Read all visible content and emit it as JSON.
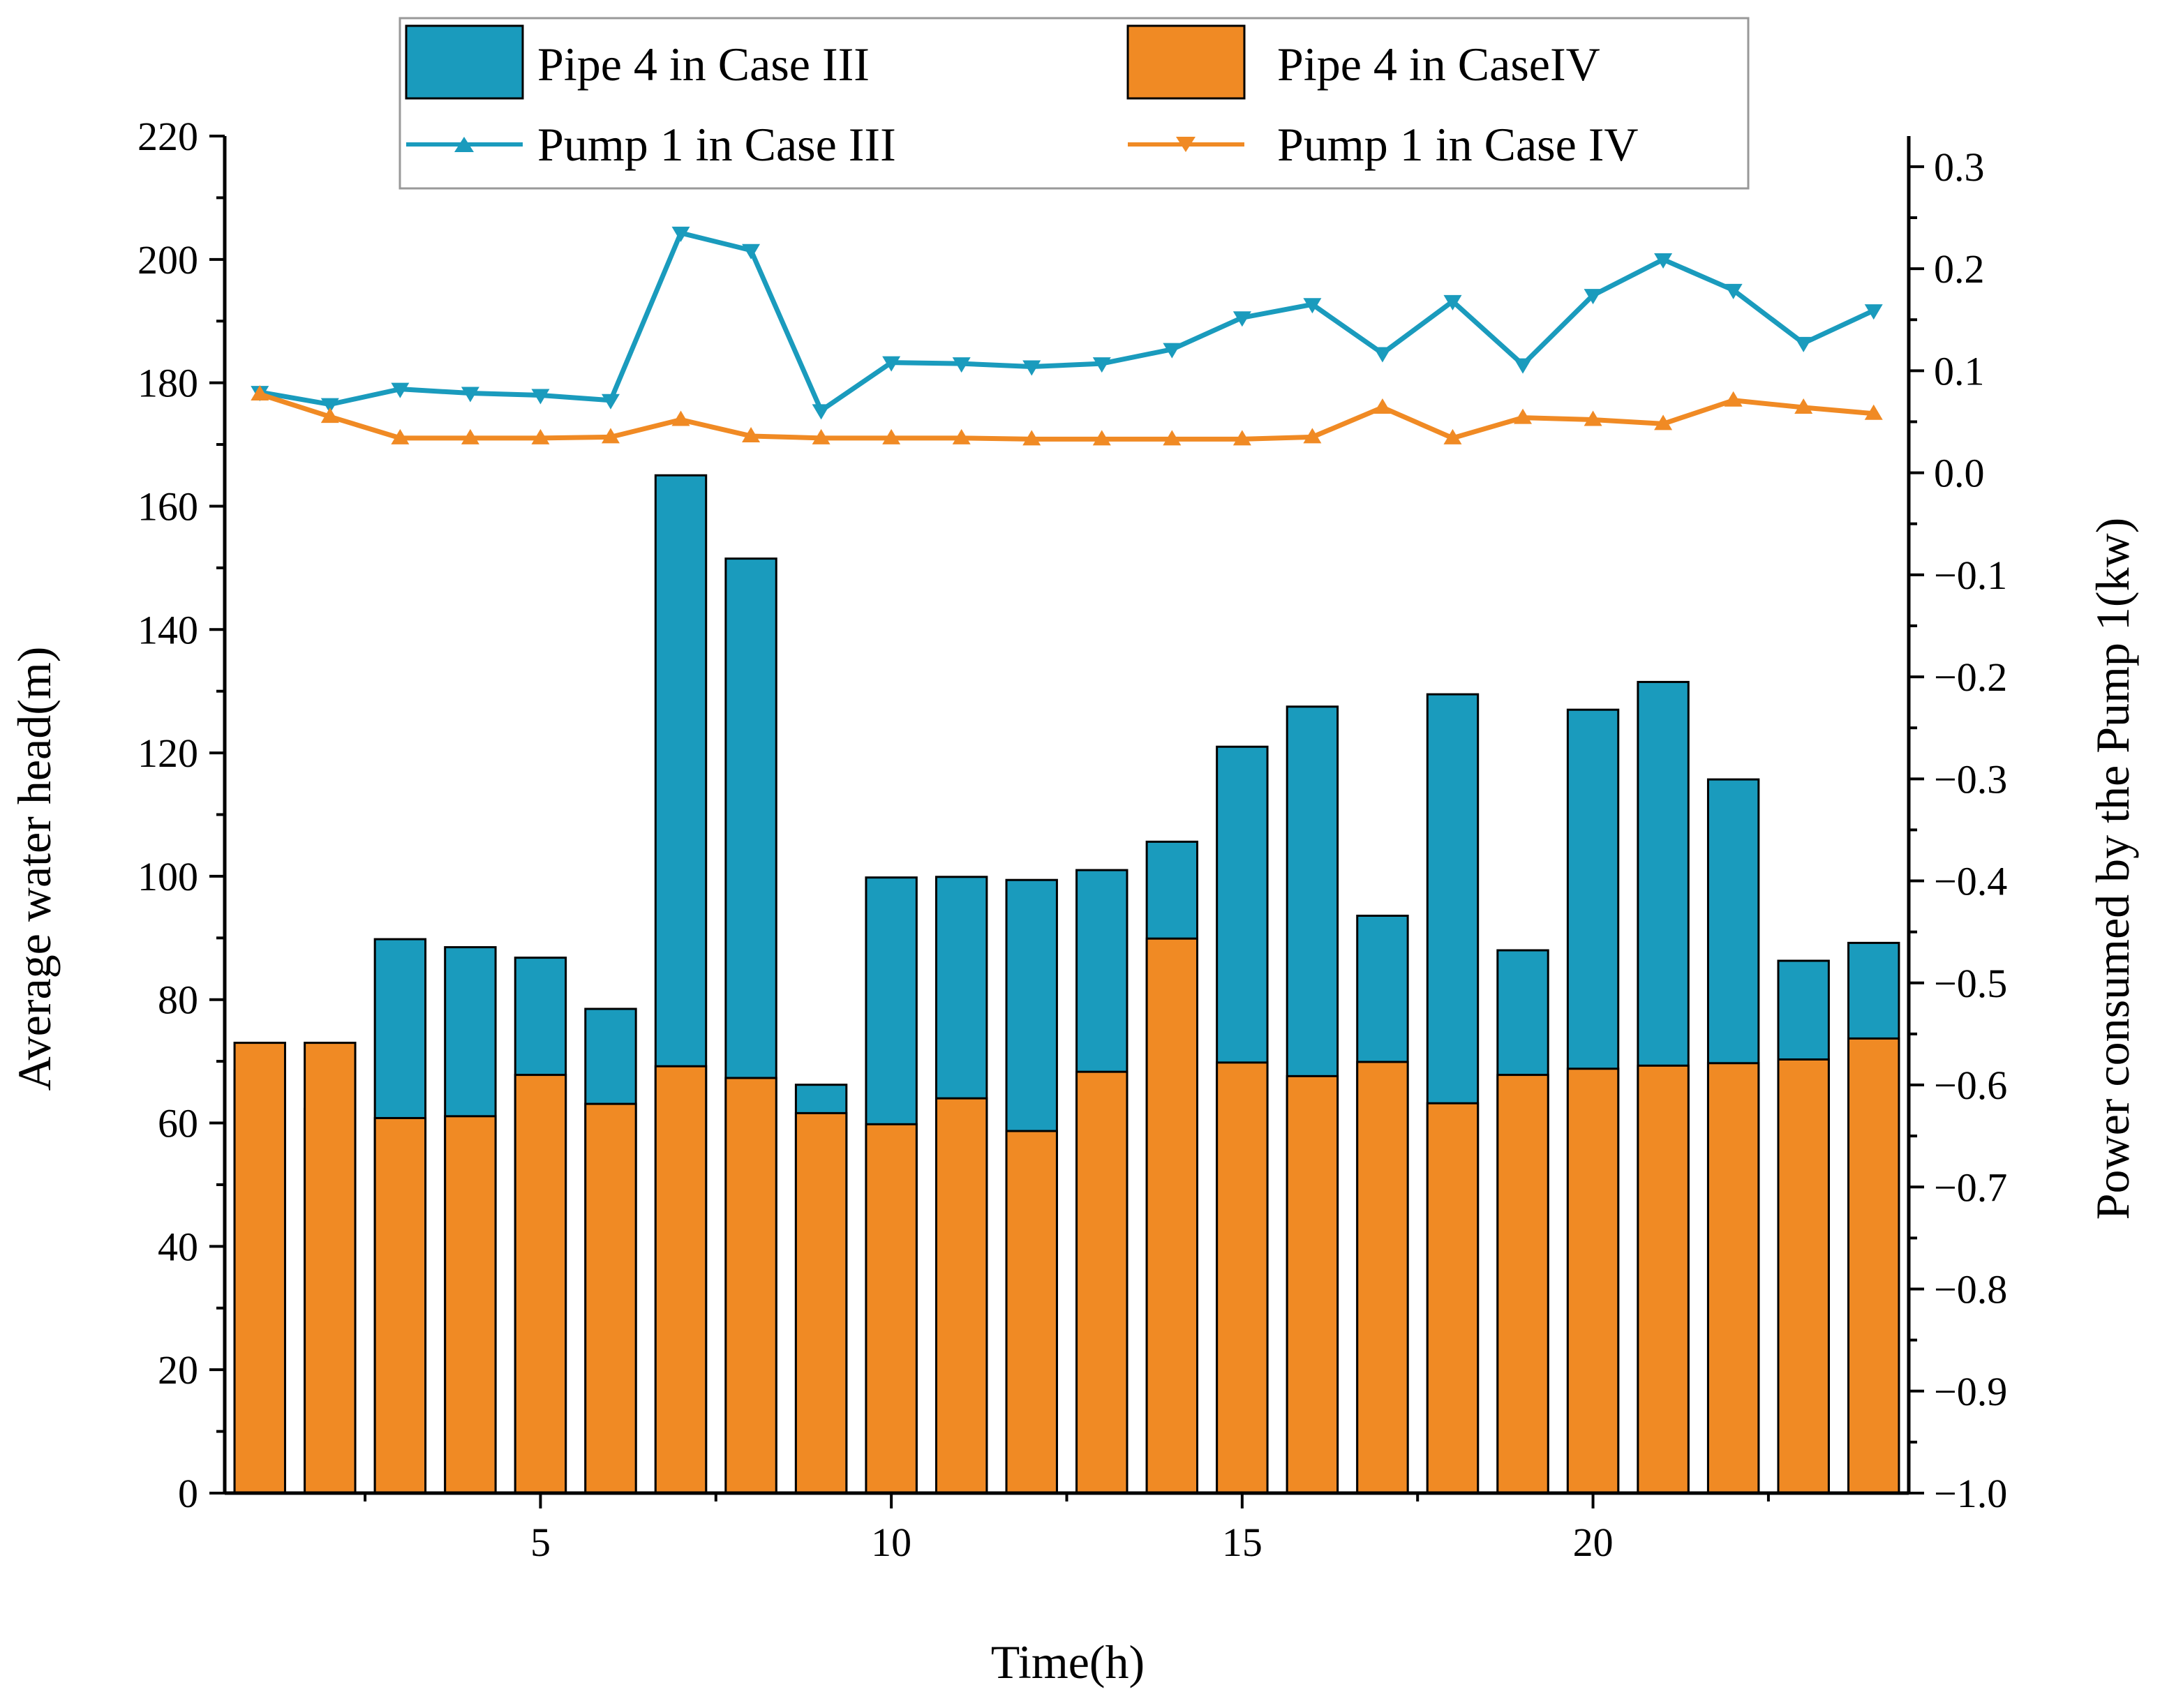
{
  "chart_data": {
    "type": "bar",
    "x": [
      1,
      2,
      3,
      4,
      5,
      6,
      7,
      8,
      9,
      10,
      11,
      12,
      13,
      14,
      15,
      16,
      17,
      18,
      19,
      20,
      21,
      22,
      23,
      24
    ],
    "xlabel": "Time(h)",
    "xticks": [
      5,
      10,
      15,
      20
    ],
    "xlim": [
      0.5,
      24.5
    ],
    "ylabel_left": "Average water head(m)",
    "ylim_left": [
      0,
      220
    ],
    "yticks_left": [
      0,
      20,
      40,
      60,
      80,
      100,
      120,
      140,
      160,
      180,
      200,
      220
    ],
    "ylabel_right": "Power consumed by the Pump 1(kw)",
    "ylim_right": [
      -1.0,
      0.33
    ],
    "yticks_right": [
      "−1.0",
      "−0.9",
      "−0.8",
      "−0.7",
      "−0.6",
      "−0.5",
      "−0.4",
      "−0.3",
      "−0.2",
      "−0.1",
      "0.0",
      "0.1",
      "0.2",
      "0.3"
    ],
    "yticks_right_values": [
      -1.0,
      -0.9,
      -0.8,
      -0.7,
      -0.6,
      -0.5,
      -0.4,
      -0.3,
      -0.2,
      -0.1,
      0.0,
      0.1,
      0.2,
      0.3
    ],
    "bar_series": [
      {
        "name": "Pipe 4 in Case III",
        "color": "#1a9bbd",
        "values": [
          68.5,
          62.3,
          89.8,
          88.5,
          86.8,
          78.5,
          165,
          151.5,
          66.2,
          99.8,
          99.9,
          99.4,
          101,
          105.6,
          121,
          127.5,
          93.6,
          129.5,
          88,
          127,
          131.5,
          115.7,
          86.3,
          89.2
        ]
      },
      {
        "name": "Pipe 4 in CaseIV",
        "color": "#f08a24",
        "values": [
          73,
          73,
          60.8,
          61.1,
          67.8,
          63.1,
          69.2,
          67.3,
          61.6,
          59.8,
          64,
          58.7,
          68.3,
          89.9,
          69.8,
          67.6,
          69.9,
          63.2,
          67.8,
          68.8,
          69.3,
          69.7,
          70.3,
          73.7
        ]
      }
    ],
    "line_series": [
      {
        "name": "Pump 1 in Case III",
        "color": "#1a9bbd",
        "marker": "triangle-down",
        "values": [
          0.079,
          0.067,
          0.082,
          0.078,
          0.076,
          0.071,
          0.235,
          0.218,
          0.061,
          0.108,
          0.107,
          0.104,
          0.107,
          0.121,
          0.152,
          0.165,
          0.117,
          0.168,
          0.106,
          0.174,
          0.209,
          0.179,
          0.127,
          0.159
        ]
      },
      {
        "name": "Pump 1 in Case IV",
        "color": "#f08a24",
        "marker": "triangle-up",
        "values": [
          0.077,
          0.055,
          0.034,
          0.034,
          0.034,
          0.035,
          0.052,
          0.036,
          0.034,
          0.034,
          0.034,
          0.033,
          0.033,
          0.033,
          0.033,
          0.035,
          0.064,
          0.034,
          0.054,
          0.052,
          0.048,
          0.071,
          0.064,
          0.058
        ]
      }
    ],
    "legend": [
      "Pipe 4 in Case III",
      "Pipe 4 in CaseIV",
      "Pump 1 in Case III",
      "Pump 1 in Case IV"
    ]
  }
}
